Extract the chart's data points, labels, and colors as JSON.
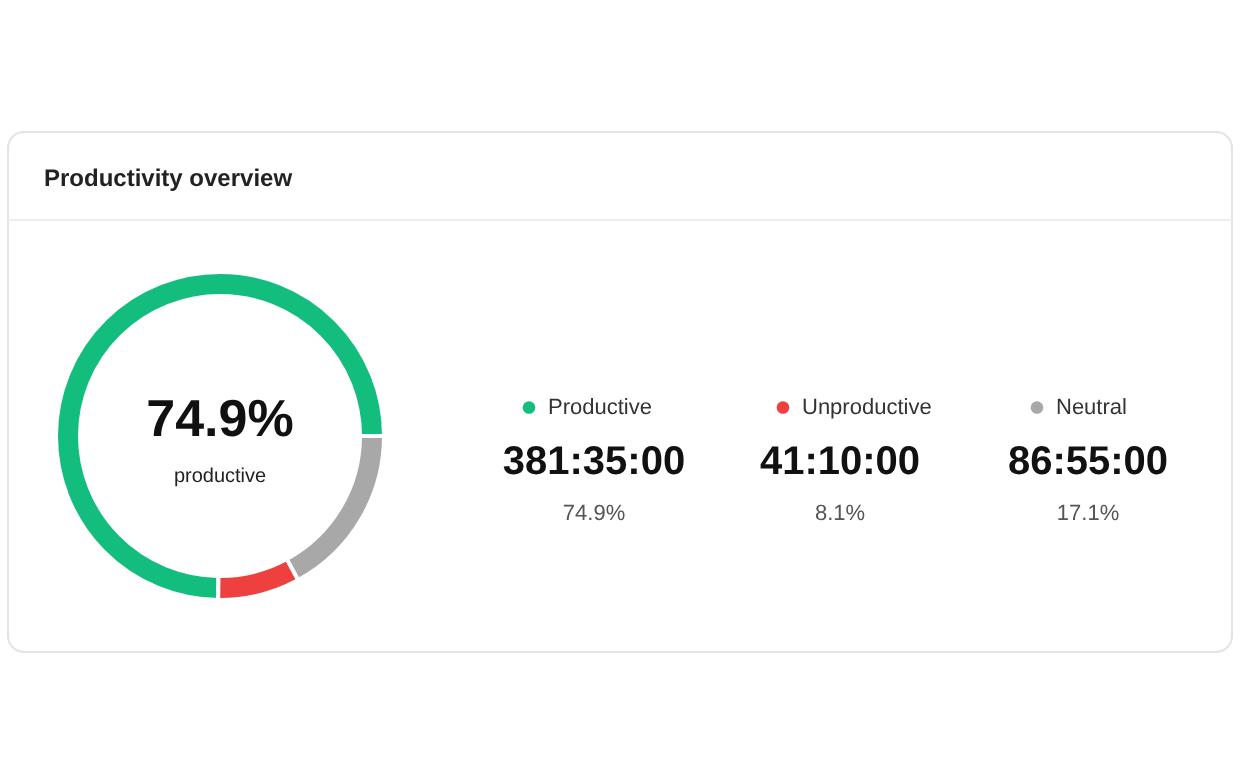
{
  "chart_data": {
    "type": "donut",
    "title": "Productivity overview",
    "categories": [
      "Productive",
      "Unproductive",
      "Neutral"
    ],
    "values": [
      74.9,
      8.1,
      17.1
    ],
    "colors": [
      "#13bd7e",
      "#ef4040",
      "#a8a8a8"
    ],
    "legend": "right",
    "annotations": [
      "74.9%",
      "productive",
      "381:35:00",
      "41:10:00",
      "86:55:00",
      "74.9%",
      "8.1%",
      "17.1%"
    ]
  }
}
